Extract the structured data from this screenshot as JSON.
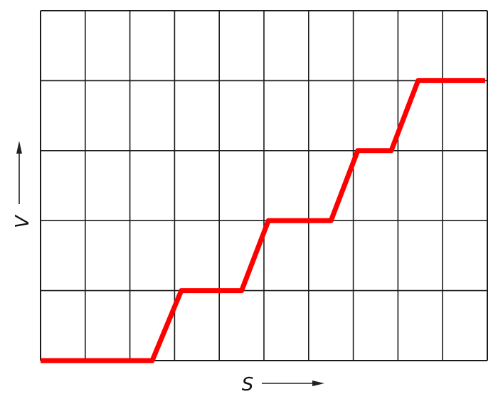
{
  "chart_data": {
    "type": "line",
    "title": "",
    "xlabel": "S",
    "ylabel": "V",
    "xlim": [
      0,
      10
    ],
    "ylim": [
      0,
      5
    ],
    "grid": true,
    "grid_divisions": {
      "x": 10,
      "y": 5
    },
    "tick_labels": false,
    "series": [
      {
        "color": "#ff0000",
        "points": [
          [
            0,
            0
          ],
          [
            2.5,
            0
          ],
          [
            3.15,
            1
          ],
          [
            4.5,
            1
          ],
          [
            5.1,
            2
          ],
          [
            6.5,
            2
          ],
          [
            7.1,
            3
          ],
          [
            7.85,
            3
          ],
          [
            8.45,
            4
          ],
          [
            9.95,
            4
          ]
        ]
      }
    ]
  },
  "colors": {
    "grid": "#1a1a1a",
    "curve": "#ff0000",
    "background": "#ffffff"
  }
}
